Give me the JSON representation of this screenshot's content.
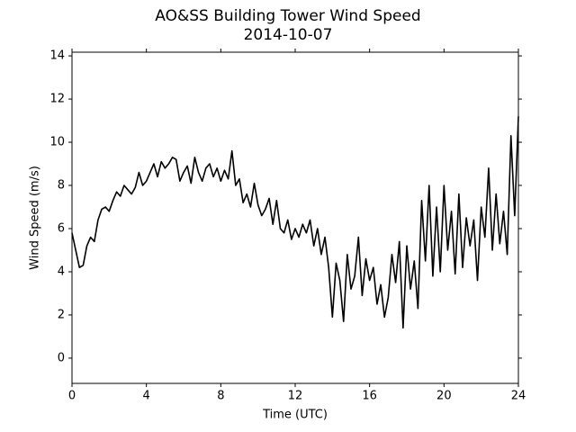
{
  "chart_data": {
    "type": "line",
    "title": "AO&SS Building Tower Wind Speed",
    "subtitle": "2014-10-07",
    "xlabel": "Time (UTC)",
    "ylabel": "Wind Speed (m/s)",
    "xlim": [
      0,
      24
    ],
    "xticks": [
      0,
      4,
      8,
      12,
      16,
      20,
      24
    ],
    "ylim": [
      -1.17,
      14.17
    ],
    "yticks": [
      0,
      2,
      4,
      6,
      8,
      10,
      12,
      14
    ],
    "x": [
      0,
      0.2,
      0.4,
      0.6,
      0.8,
      1.0,
      1.2,
      1.4,
      1.6,
      1.8,
      2.0,
      2.2,
      2.4,
      2.6,
      2.8,
      3.0,
      3.2,
      3.4,
      3.6,
      3.8,
      4.0,
      4.2,
      4.4,
      4.6,
      4.8,
      5.0,
      5.2,
      5.4,
      5.6,
      5.8,
      6.0,
      6.2,
      6.4,
      6.6,
      6.8,
      7.0,
      7.2,
      7.4,
      7.6,
      7.8,
      8.0,
      8.2,
      8.4,
      8.6,
      8.8,
      9.0,
      9.2,
      9.4,
      9.6,
      9.8,
      10.0,
      10.2,
      10.4,
      10.6,
      10.8,
      11.0,
      11.2,
      11.4,
      11.6,
      11.8,
      12.0,
      12.2,
      12.4,
      12.6,
      12.8,
      13.0,
      13.2,
      13.4,
      13.6,
      13.8,
      14.0,
      14.2,
      14.4,
      14.6,
      14.8,
      15.0,
      15.2,
      15.4,
      15.6,
      15.8,
      16.0,
      16.2,
      16.4,
      16.6,
      16.8,
      17.0,
      17.2,
      17.4,
      17.6,
      17.8,
      18.0,
      18.2,
      18.4,
      18.6,
      18.8,
      19.0,
      19.2,
      19.4,
      19.6,
      19.8,
      20.0,
      20.2,
      20.4,
      20.6,
      20.8,
      21.0,
      21.2,
      21.4,
      21.6,
      21.8,
      22.0,
      22.2,
      22.4,
      22.6,
      22.8,
      23.0,
      23.2,
      23.4,
      23.6,
      23.8,
      24.0
    ],
    "series": [
      {
        "color": "#000000",
        "values": [
          5.8,
          5.0,
          4.2,
          4.3,
          5.2,
          5.6,
          5.4,
          6.4,
          6.9,
          7.0,
          6.8,
          7.3,
          7.7,
          7.5,
          8.0,
          7.8,
          7.6,
          7.9,
          8.6,
          8.0,
          8.2,
          8.6,
          9.0,
          8.4,
          9.1,
          8.8,
          9.0,
          9.3,
          9.2,
          8.2,
          8.6,
          8.9,
          8.1,
          9.3,
          8.6,
          8.2,
          8.8,
          9.0,
          8.4,
          8.8,
          8.2,
          8.7,
          8.3,
          9.6,
          8.0,
          8.3,
          7.2,
          7.6,
          7.0,
          8.1,
          7.1,
          6.6,
          6.9,
          7.4,
          6.2,
          7.3,
          6.0,
          5.8,
          6.4,
          5.5,
          6.0,
          5.6,
          6.2,
          5.8,
          6.4,
          5.2,
          6.0,
          4.8,
          5.6,
          4.2,
          1.9,
          4.4,
          3.6,
          1.7,
          4.8,
          3.2,
          3.8,
          5.6,
          2.9,
          4.6,
          3.6,
          4.2,
          2.5,
          3.4,
          1.9,
          2.8,
          4.8,
          3.5,
          5.4,
          1.4,
          5.2,
          3.2,
          4.5,
          2.3,
          7.3,
          4.5,
          8.0,
          3.8,
          7.0,
          4.0,
          8.0,
          5.0,
          6.8,
          3.9,
          7.6,
          4.2,
          6.5,
          5.2,
          6.4,
          3.6,
          7.0,
          5.6,
          8.8,
          5.0,
          7.6,
          5.3,
          6.8,
          4.8,
          10.3,
          6.6,
          11.2
        ]
      }
    ]
  }
}
